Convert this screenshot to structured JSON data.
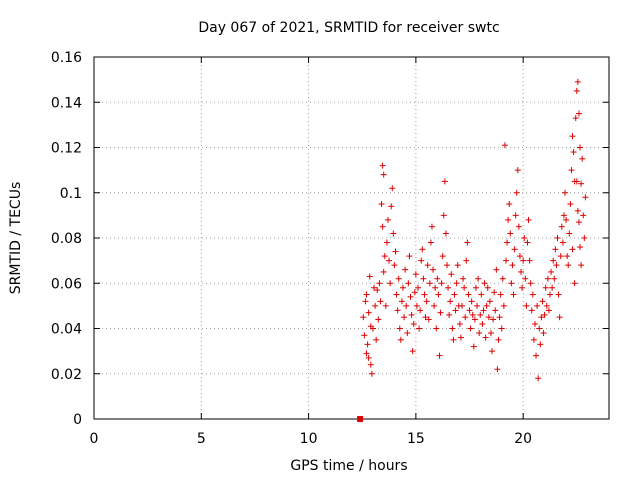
{
  "chart_data": {
    "type": "scatter",
    "title": "Day 067 of 2021, SRMTID for receiver swtc",
    "xlabel": "GPS time / hours",
    "ylabel": "SRMTID / TECUs",
    "xlim": [
      0,
      24
    ],
    "ylim": [
      0,
      0.16
    ],
    "x_ticks": [
      0,
      5,
      10,
      15,
      20
    ],
    "x_tick_labels": [
      "0",
      "5",
      "10",
      "15",
      "20"
    ],
    "y_ticks": [
      0,
      0.02,
      0.04,
      0.06,
      0.08,
      0.1,
      0.12,
      0.14,
      0.16
    ],
    "y_tick_labels": [
      "0",
      "0.02",
      "0.04",
      "0.06",
      "0.08",
      "0.1",
      "0.12",
      "0.14",
      "0.16"
    ],
    "grid": true,
    "marker": "plus",
    "color": "#dd0000",
    "special_marker": {
      "x": 12.4,
      "y": 0.0,
      "shape": "square"
    },
    "series": [
      {
        "name": "SRMTID",
        "points": [
          [
            12.6,
            0.037
          ],
          [
            12.7,
            0.029
          ],
          [
            12.8,
            0.047
          ],
          [
            12.9,
            0.024
          ],
          [
            12.65,
            0.052
          ],
          [
            12.75,
            0.033
          ],
          [
            12.85,
            0.063
          ],
          [
            12.95,
            0.02
          ],
          [
            13.0,
            0.04
          ],
          [
            13.05,
            0.058
          ],
          [
            12.55,
            0.045
          ],
          [
            12.7,
            0.055
          ],
          [
            12.8,
            0.027
          ],
          [
            12.9,
            0.041
          ],
          [
            13.1,
            0.05
          ],
          [
            13.15,
            0.035
          ],
          [
            13.2,
            0.057
          ],
          [
            13.25,
            0.044
          ],
          [
            13.3,
            0.06
          ],
          [
            13.35,
            0.052
          ],
          [
            13.4,
            0.095
          ],
          [
            13.45,
            0.112
          ],
          [
            13.5,
            0.108
          ],
          [
            13.45,
            0.085
          ],
          [
            13.55,
            0.072
          ],
          [
            13.5,
            0.065
          ],
          [
            13.6,
            0.05
          ],
          [
            13.65,
            0.078
          ],
          [
            13.7,
            0.088
          ],
          [
            13.75,
            0.07
          ],
          [
            13.8,
            0.06
          ],
          [
            13.85,
            0.094
          ],
          [
            13.9,
            0.102
          ],
          [
            13.95,
            0.082
          ],
          [
            14.0,
            0.068
          ],
          [
            14.05,
            0.074
          ],
          [
            14.1,
            0.055
          ],
          [
            14.15,
            0.048
          ],
          [
            14.2,
            0.062
          ],
          [
            14.25,
            0.04
          ],
          [
            14.3,
            0.035
          ],
          [
            14.35,
            0.052
          ],
          [
            14.4,
            0.058
          ],
          [
            14.45,
            0.045
          ],
          [
            14.5,
            0.066
          ],
          [
            14.55,
            0.05
          ],
          [
            14.6,
            0.038
          ],
          [
            14.65,
            0.06
          ],
          [
            14.7,
            0.072
          ],
          [
            14.75,
            0.054
          ],
          [
            14.8,
            0.046
          ],
          [
            14.85,
            0.03
          ],
          [
            14.9,
            0.042
          ],
          [
            14.95,
            0.056
          ],
          [
            15.0,
            0.064
          ],
          [
            15.05,
            0.05
          ],
          [
            15.1,
            0.058
          ],
          [
            15.15,
            0.04
          ],
          [
            15.2,
            0.048
          ],
          [
            15.25,
            0.07
          ],
          [
            15.3,
            0.075
          ],
          [
            15.35,
            0.062
          ],
          [
            15.4,
            0.055
          ],
          [
            15.45,
            0.045
          ],
          [
            15.5,
            0.052
          ],
          [
            15.55,
            0.068
          ],
          [
            15.6,
            0.044
          ],
          [
            15.65,
            0.06
          ],
          [
            15.7,
            0.078
          ],
          [
            15.75,
            0.085
          ],
          [
            15.8,
            0.066
          ],
          [
            15.85,
            0.05
          ],
          [
            15.9,
            0.058
          ],
          [
            15.95,
            0.04
          ],
          [
            16.0,
            0.062
          ],
          [
            16.05,
            0.055
          ],
          [
            16.1,
            0.028
          ],
          [
            16.15,
            0.047
          ],
          [
            16.2,
            0.06
          ],
          [
            16.25,
            0.072
          ],
          [
            16.3,
            0.09
          ],
          [
            16.35,
            0.105
          ],
          [
            16.4,
            0.082
          ],
          [
            16.45,
            0.068
          ],
          [
            16.5,
            0.058
          ],
          [
            16.55,
            0.046
          ],
          [
            16.6,
            0.052
          ],
          [
            16.65,
            0.064
          ],
          [
            16.7,
            0.04
          ],
          [
            16.75,
            0.035
          ],
          [
            16.8,
            0.055
          ],
          [
            16.85,
            0.048
          ],
          [
            16.9,
            0.06
          ],
          [
            16.95,
            0.068
          ],
          [
            17.0,
            0.05
          ],
          [
            17.05,
            0.042
          ],
          [
            17.1,
            0.036
          ],
          [
            17.15,
            0.05
          ],
          [
            17.2,
            0.062
          ],
          [
            17.25,
            0.058
          ],
          [
            17.3,
            0.045
          ],
          [
            17.35,
            0.07
          ],
          [
            17.4,
            0.078
          ],
          [
            17.45,
            0.055
          ],
          [
            17.5,
            0.048
          ],
          [
            17.55,
            0.04
          ],
          [
            17.6,
            0.052
          ],
          [
            17.65,
            0.046
          ],
          [
            17.7,
            0.032
          ],
          [
            17.75,
            0.044
          ],
          [
            17.8,
            0.058
          ],
          [
            17.85,
            0.05
          ],
          [
            17.9,
            0.062
          ],
          [
            17.95,
            0.038
          ],
          [
            18.0,
            0.046
          ],
          [
            18.05,
            0.055
          ],
          [
            18.1,
            0.042
          ],
          [
            18.15,
            0.048
          ],
          [
            18.2,
            0.06
          ],
          [
            18.25,
            0.036
          ],
          [
            18.3,
            0.05
          ],
          [
            18.35,
            0.058
          ],
          [
            18.4,
            0.045
          ],
          [
            18.45,
            0.052
          ],
          [
            18.5,
            0.038
          ],
          [
            18.55,
            0.03
          ],
          [
            18.6,
            0.044
          ],
          [
            18.65,
            0.056
          ],
          [
            18.7,
            0.048
          ],
          [
            18.75,
            0.066
          ],
          [
            18.8,
            0.022
          ],
          [
            18.85,
            0.035
          ],
          [
            18.9,
            0.045
          ],
          [
            18.95,
            0.055
          ],
          [
            19.0,
            0.04
          ],
          [
            19.05,
            0.062
          ],
          [
            19.1,
            0.05
          ],
          [
            19.15,
            0.121
          ],
          [
            19.2,
            0.07
          ],
          [
            19.25,
            0.078
          ],
          [
            19.3,
            0.088
          ],
          [
            19.35,
            0.095
          ],
          [
            19.4,
            0.082
          ],
          [
            19.45,
            0.06
          ],
          [
            19.5,
            0.068
          ],
          [
            19.55,
            0.055
          ],
          [
            19.6,
            0.075
          ],
          [
            19.65,
            0.09
          ],
          [
            19.7,
            0.1
          ],
          [
            19.75,
            0.11
          ],
          [
            19.8,
            0.085
          ],
          [
            19.85,
            0.072
          ],
          [
            19.9,
            0.065
          ],
          [
            19.95,
            0.058
          ],
          [
            20.0,
            0.07
          ],
          [
            20.05,
            0.08
          ],
          [
            20.1,
            0.062
          ],
          [
            20.15,
            0.05
          ],
          [
            20.2,
            0.078
          ],
          [
            20.25,
            0.088
          ],
          [
            20.3,
            0.07
          ],
          [
            20.35,
            0.06
          ],
          [
            20.4,
            0.048
          ],
          [
            20.45,
            0.055
          ],
          [
            20.5,
            0.035
          ],
          [
            20.55,
            0.042
          ],
          [
            20.6,
            0.028
          ],
          [
            20.65,
            0.05
          ],
          [
            20.7,
            0.018
          ],
          [
            20.75,
            0.04
          ],
          [
            20.8,
            0.033
          ],
          [
            20.85,
            0.045
          ],
          [
            20.9,
            0.052
          ],
          [
            20.95,
            0.038
          ],
          [
            21.0,
            0.046
          ],
          [
            21.05,
            0.058
          ],
          [
            21.1,
            0.05
          ],
          [
            21.15,
            0.062
          ],
          [
            21.2,
            0.048
          ],
          [
            21.25,
            0.055
          ],
          [
            21.3,
            0.065
          ],
          [
            21.35,
            0.058
          ],
          [
            21.4,
            0.07
          ],
          [
            21.45,
            0.062
          ],
          [
            21.5,
            0.075
          ],
          [
            21.55,
            0.068
          ],
          [
            21.6,
            0.08
          ],
          [
            21.65,
            0.055
          ],
          [
            21.7,
            0.045
          ],
          [
            21.75,
            0.072
          ],
          [
            21.8,
            0.085
          ],
          [
            21.85,
            0.078
          ],
          [
            21.9,
            0.09
          ],
          [
            21.95,
            0.1
          ],
          [
            22.0,
            0.088
          ],
          [
            22.05,
            0.072
          ],
          [
            22.1,
            0.068
          ],
          [
            22.15,
            0.082
          ],
          [
            22.2,
            0.095
          ],
          [
            22.25,
            0.11
          ],
          [
            22.3,
            0.125
          ],
          [
            22.35,
            0.118
          ],
          [
            22.4,
            0.105
          ],
          [
            22.45,
            0.133
          ],
          [
            22.5,
            0.145
          ],
          [
            22.55,
            0.149
          ],
          [
            22.6,
            0.135
          ],
          [
            22.65,
            0.12
          ],
          [
            22.7,
            0.104
          ],
          [
            22.75,
            0.115
          ],
          [
            22.8,
            0.09
          ],
          [
            22.85,
            0.08
          ],
          [
            22.9,
            0.098
          ],
          [
            22.5,
            0.105
          ],
          [
            22.55,
            0.092
          ],
          [
            22.6,
            0.087
          ],
          [
            22.65,
            0.076
          ],
          [
            22.7,
            0.068
          ],
          [
            22.4,
            0.06
          ],
          [
            22.3,
            0.075
          ]
        ]
      }
    ]
  }
}
